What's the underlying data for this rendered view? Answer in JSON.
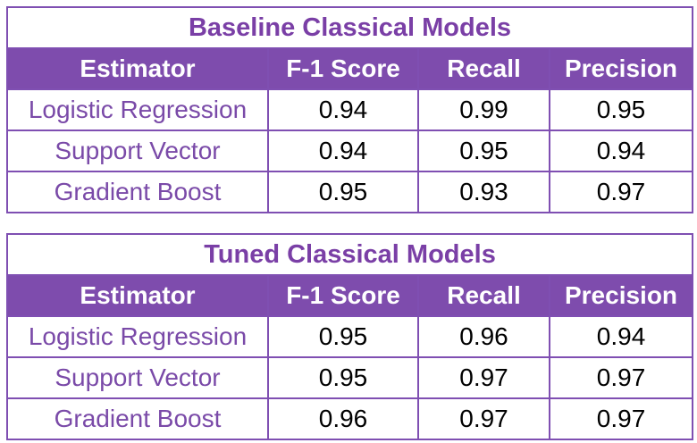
{
  "colors": {
    "accent_purple": "#7e4cad",
    "title_text": "#7a3fa6",
    "border": "#7f4fb2",
    "header_text": "#ffffff",
    "value_text": "#000000"
  },
  "tables": [
    {
      "title": "Baseline Classical Models",
      "headers": [
        "Estimator",
        "F-1 Score",
        "Recall",
        "Precision"
      ],
      "rows": [
        [
          "Logistic Regression",
          "0.94",
          "0.99",
          "0.95"
        ],
        [
          "Support Vector",
          "0.94",
          "0.95",
          "0.94"
        ],
        [
          "Gradient Boost",
          "0.95",
          "0.93",
          "0.97"
        ]
      ]
    },
    {
      "title": "Tuned Classical Models",
      "headers": [
        "Estimator",
        "F-1 Score",
        "Recall",
        "Precision"
      ],
      "rows": [
        [
          "Logistic Regression",
          "0.95",
          "0.96",
          "0.94"
        ],
        [
          "Support Vector",
          "0.95",
          "0.97",
          "0.97"
        ],
        [
          "Gradient Boost",
          "0.96",
          "0.97",
          "0.97"
        ]
      ]
    }
  ]
}
